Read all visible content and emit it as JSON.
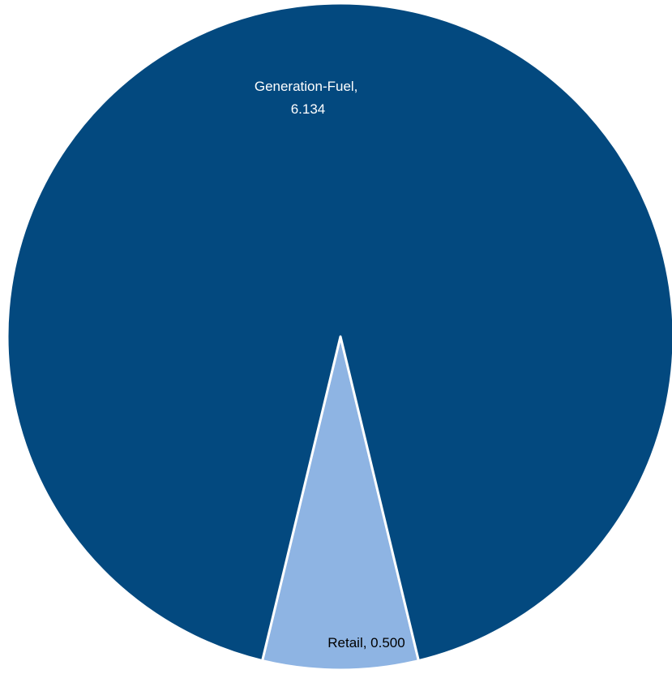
{
  "chart_data": {
    "type": "pie",
    "categories": [
      "Generation-Fuel",
      "Retail"
    ],
    "values": [
      6.134,
      0.5
    ],
    "colors": [
      "#03497F",
      "#8EB4E3"
    ],
    "data_labels": [
      {
        "line1": "Generation-Fuel,",
        "line2": "6.134"
      },
      {
        "line1": "Retail,  0.500",
        "line2": ""
      }
    ],
    "label_colors": [
      "#ffffff",
      "#000000"
    ],
    "title": "",
    "legend": "none"
  }
}
